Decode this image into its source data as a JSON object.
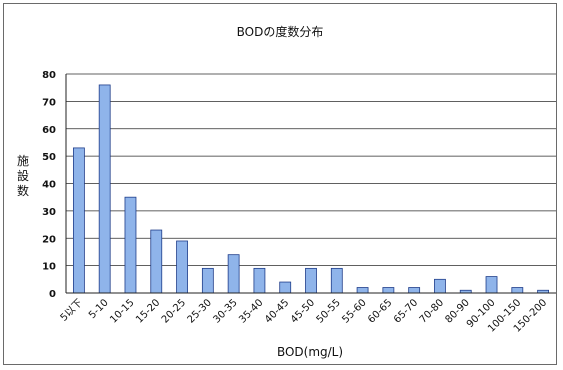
{
  "chart_data": {
    "type": "bar",
    "title": "BODの度数分布",
    "xlabel": "BOD(mg/L)",
    "ylabel": "施設数",
    "ylim": [
      0,
      80
    ],
    "yticks": [
      0,
      10,
      20,
      30,
      40,
      50,
      60,
      70,
      80
    ],
    "grid": true,
    "legend": "none",
    "bar_color": "#8fb4ea",
    "bar_edge_color": "#1f3d8a",
    "categories": [
      "5以下",
      "5-10",
      "10-15",
      "15-20",
      "20-25",
      "25-30",
      "30-35",
      "35-40",
      "40-45",
      "45-50",
      "50-55",
      "55-60",
      "60-65",
      "65-70",
      "70-80",
      "80-90",
      "90-100",
      "100-150",
      "150-200"
    ],
    "values": [
      53,
      76,
      35,
      23,
      19,
      9,
      14,
      9,
      4,
      9,
      9,
      2,
      2,
      2,
      5,
      1,
      6,
      2,
      1
    ]
  }
}
